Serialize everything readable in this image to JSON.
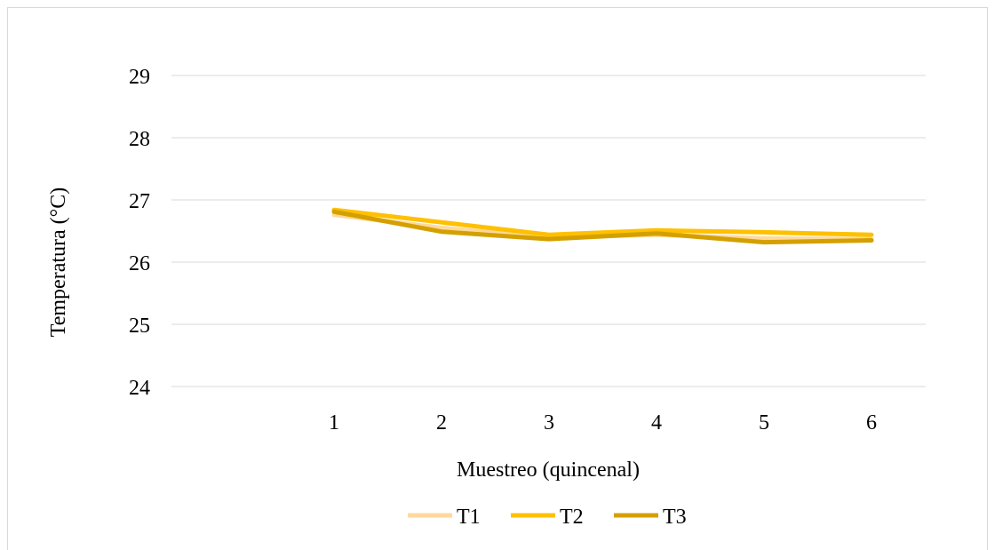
{
  "chart_data": {
    "type": "line",
    "title": "",
    "xlabel": "Muestreo (quincenal)",
    "ylabel": "Temperatura (°C)",
    "categories": [
      "1",
      "2",
      "3",
      "4",
      "5",
      "6"
    ],
    "ylim": [
      24,
      29
    ],
    "yticks": [
      "24",
      "25",
      "26",
      "27",
      "28",
      "29"
    ],
    "grid": true,
    "legend_position": "bottom",
    "series": [
      {
        "name": "T1",
        "color": "#ffd99a",
        "values": [
          26.76,
          26.55,
          26.4,
          26.44,
          26.38,
          26.37
        ]
      },
      {
        "name": "T2",
        "color": "#ffc000",
        "values": [
          26.84,
          26.64,
          26.44,
          26.51,
          26.48,
          26.44
        ]
      },
      {
        "name": "T3",
        "color": "#d4a000",
        "values": [
          26.81,
          26.49,
          26.37,
          26.46,
          26.32,
          26.35
        ]
      }
    ]
  }
}
